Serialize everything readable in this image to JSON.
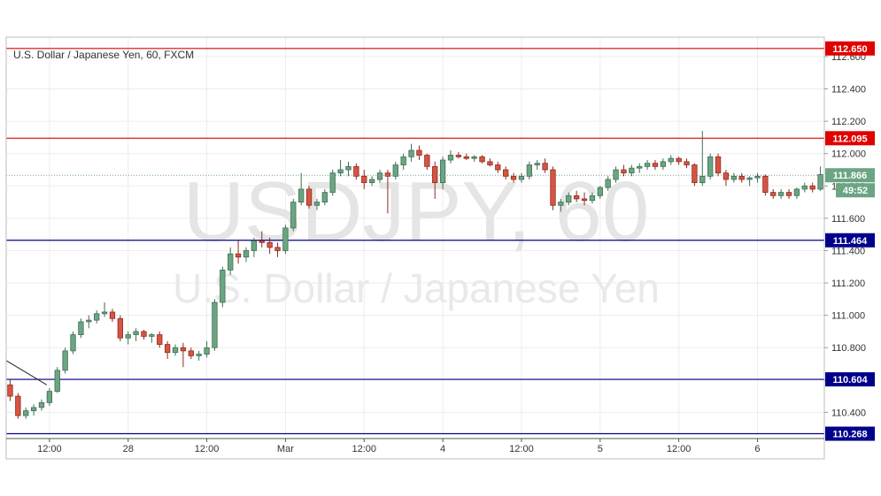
{
  "chart_data": {
    "type": "candlestick",
    "title": "U.S. Dollar / Japanese Yen, 60, FXCM",
    "watermark": {
      "symbol": "USDJPY, 60",
      "name": "U.S. Dollar / Japanese Yen"
    },
    "ylim": [
      110.26,
      112.72
    ],
    "y_ticks": [
      "110.400",
      "110.600",
      "110.800",
      "111.000",
      "111.200",
      "111.400",
      "111.600",
      "111.800",
      "112.000",
      "112.200",
      "112.400",
      "112.600"
    ],
    "y_tick_values": [
      110.4,
      110.6,
      110.8,
      111.0,
      111.2,
      111.4,
      111.6,
      111.8,
      112.0,
      112.2,
      112.4,
      112.6
    ],
    "x_ticks": [
      {
        "label": "12:00",
        "bar": 5
      },
      {
        "label": "28",
        "bar": 15
      },
      {
        "label": "12:00",
        "bar": 25
      },
      {
        "label": "Mar",
        "bar": 35
      },
      {
        "label": "12:00",
        "bar": 45
      },
      {
        "label": "4",
        "bar": 55
      },
      {
        "label": "12:00",
        "bar": 65
      },
      {
        "label": "5",
        "bar": 75
      },
      {
        "label": "12:00",
        "bar": 85
      },
      {
        "label": "6",
        "bar": 95
      }
    ],
    "bar_count": 104,
    "grid": true,
    "up_color": "#6ba583",
    "down_color": "#d75442",
    "support_resistance": [
      {
        "price": 112.65,
        "label": "112.650",
        "color": "#e00000"
      },
      {
        "price": 112.095,
        "label": "112.095",
        "color": "#e00000"
      },
      {
        "price": 111.464,
        "label": "111.464",
        "color": "#00008b"
      },
      {
        "price": 110.604,
        "label": "110.604",
        "color": "#00008b"
      },
      {
        "price": 110.268,
        "label": "110.268",
        "color": "#00008b"
      }
    ],
    "current_price": {
      "price": 111.866,
      "label": "111.866",
      "countdown": "49:52",
      "color": "#6ba583"
    },
    "trendline": {
      "from": [
        0,
        110.72
      ],
      "to": [
        5,
        110.57
      ],
      "color": "#222222"
    },
    "candles": [
      [
        110.57,
        110.6,
        110.47,
        110.5
      ],
      [
        110.5,
        110.52,
        110.36,
        110.38
      ],
      [
        110.38,
        110.43,
        110.36,
        110.41
      ],
      [
        110.41,
        110.45,
        110.38,
        110.43
      ],
      [
        110.43,
        110.48,
        110.41,
        110.46
      ],
      [
        110.46,
        110.55,
        110.44,
        110.53
      ],
      [
        110.53,
        110.68,
        110.52,
        110.66
      ],
      [
        110.66,
        110.8,
        110.64,
        110.78
      ],
      [
        110.78,
        110.9,
        110.76,
        110.88
      ],
      [
        110.88,
        110.98,
        110.86,
        110.96
      ],
      [
        110.96,
        111.0,
        110.92,
        110.97
      ],
      [
        110.97,
        111.03,
        110.95,
        111.01
      ],
      [
        111.01,
        111.08,
        110.99,
        111.02
      ],
      [
        111.02,
        111.04,
        110.96,
        110.98
      ],
      [
        110.98,
        111.0,
        110.84,
        110.86
      ],
      [
        110.86,
        110.9,
        110.82,
        110.88
      ],
      [
        110.88,
        110.92,
        110.84,
        110.9
      ],
      [
        110.9,
        110.91,
        110.85,
        110.87
      ],
      [
        110.87,
        110.89,
        110.83,
        110.88
      ],
      [
        110.88,
        110.9,
        110.8,
        110.82
      ],
      [
        110.82,
        110.84,
        110.73,
        110.77
      ],
      [
        110.77,
        110.82,
        110.75,
        110.8
      ],
      [
        110.8,
        110.83,
        110.68,
        110.78
      ],
      [
        110.78,
        110.8,
        110.73,
        110.75
      ],
      [
        110.75,
        110.78,
        110.72,
        110.76
      ],
      [
        110.76,
        110.84,
        110.74,
        110.8
      ],
      [
        110.8,
        111.1,
        110.78,
        111.08
      ],
      [
        111.08,
        111.3,
        111.05,
        111.28
      ],
      [
        111.28,
        111.42,
        111.25,
        111.38
      ],
      [
        111.38,
        111.46,
        111.32,
        111.36
      ],
      [
        111.36,
        111.42,
        111.33,
        111.4
      ],
      [
        111.4,
        111.48,
        111.36,
        111.46
      ],
      [
        111.46,
        111.52,
        111.42,
        111.45
      ],
      [
        111.45,
        111.48,
        111.38,
        111.42
      ],
      [
        111.42,
        111.45,
        111.36,
        111.4
      ],
      [
        111.4,
        111.56,
        111.38,
        111.54
      ],
      [
        111.54,
        111.72,
        111.52,
        111.7
      ],
      [
        111.7,
        111.88,
        111.68,
        111.78
      ],
      [
        111.78,
        111.8,
        111.66,
        111.68
      ],
      [
        111.68,
        111.72,
        111.65,
        111.7
      ],
      [
        111.7,
        111.78,
        111.68,
        111.76
      ],
      [
        111.76,
        111.9,
        111.74,
        111.88
      ],
      [
        111.88,
        111.96,
        111.86,
        111.9
      ],
      [
        111.9,
        111.95,
        111.86,
        111.92
      ],
      [
        111.92,
        111.94,
        111.84,
        111.86
      ],
      [
        111.86,
        111.9,
        111.78,
        111.82
      ],
      [
        111.82,
        111.86,
        111.8,
        111.84
      ],
      [
        111.84,
        111.9,
        111.82,
        111.88
      ],
      [
        111.88,
        111.9,
        111.63,
        111.86
      ],
      [
        111.86,
        111.95,
        111.84,
        111.93
      ],
      [
        111.93,
        112.0,
        111.9,
        111.98
      ],
      [
        111.98,
        112.06,
        111.95,
        112.02
      ],
      [
        112.02,
        112.05,
        111.96,
        111.99
      ],
      [
        111.99,
        112.0,
        111.9,
        111.92
      ],
      [
        111.92,
        111.95,
        111.72,
        111.82
      ],
      [
        111.82,
        111.98,
        111.78,
        111.96
      ],
      [
        111.96,
        112.02,
        111.94,
        111.99
      ],
      [
        111.99,
        112.01,
        111.97,
        111.98
      ],
      [
        111.98,
        112.0,
        111.96,
        111.97
      ],
      [
        111.97,
        111.99,
        111.95,
        111.98
      ],
      [
        111.98,
        111.99,
        111.94,
        111.95
      ],
      [
        111.95,
        111.97,
        111.92,
        111.93
      ],
      [
        111.93,
        111.95,
        111.88,
        111.9
      ],
      [
        111.9,
        111.92,
        111.84,
        111.86
      ],
      [
        111.86,
        111.88,
        111.82,
        111.84
      ],
      [
        111.84,
        111.88,
        111.82,
        111.86
      ],
      [
        111.86,
        111.95,
        111.84,
        111.93
      ],
      [
        111.93,
        111.96,
        111.9,
        111.94
      ],
      [
        111.94,
        111.97,
        111.88,
        111.9
      ],
      [
        111.9,
        111.92,
        111.65,
        111.68
      ],
      [
        111.68,
        111.72,
        111.64,
        111.7
      ],
      [
        111.7,
        111.76,
        111.68,
        111.74
      ],
      [
        111.74,
        111.77,
        111.7,
        111.72
      ],
      [
        111.72,
        111.76,
        111.68,
        111.71
      ],
      [
        111.71,
        111.76,
        111.69,
        111.74
      ],
      [
        111.74,
        111.8,
        111.72,
        111.79
      ],
      [
        111.79,
        111.86,
        111.77,
        111.84
      ],
      [
        111.84,
        111.92,
        111.82,
        111.9
      ],
      [
        111.9,
        111.93,
        111.86,
        111.88
      ],
      [
        111.88,
        111.93,
        111.86,
        111.91
      ],
      [
        111.91,
        111.94,
        111.88,
        111.92
      ],
      [
        111.92,
        111.96,
        111.9,
        111.94
      ],
      [
        111.94,
        111.96,
        111.9,
        111.92
      ],
      [
        111.92,
        111.97,
        111.9,
        111.95
      ],
      [
        111.95,
        111.99,
        111.93,
        111.97
      ],
      [
        111.97,
        111.98,
        111.93,
        111.95
      ],
      [
        111.95,
        111.97,
        111.91,
        111.93
      ],
      [
        111.93,
        111.94,
        111.8,
        111.82
      ],
      [
        111.82,
        112.14,
        111.8,
        111.86
      ],
      [
        111.86,
        112.0,
        111.84,
        111.98
      ],
      [
        111.98,
        112.0,
        111.86,
        111.88
      ],
      [
        111.88,
        111.9,
        111.8,
        111.84
      ],
      [
        111.84,
        111.88,
        111.82,
        111.86
      ],
      [
        111.86,
        111.88,
        111.82,
        111.84
      ],
      [
        111.84,
        111.86,
        111.8,
        111.85
      ],
      [
        111.85,
        111.88,
        111.82,
        111.86
      ],
      [
        111.86,
        111.87,
        111.74,
        111.76
      ],
      [
        111.76,
        111.78,
        111.72,
        111.74
      ],
      [
        111.74,
        111.78,
        111.72,
        111.76
      ],
      [
        111.76,
        111.78,
        111.72,
        111.74
      ],
      [
        111.74,
        111.79,
        111.72,
        111.78
      ],
      [
        111.78,
        111.82,
        111.76,
        111.8
      ],
      [
        111.8,
        111.82,
        111.76,
        111.78
      ],
      [
        111.78,
        111.92,
        111.77,
        111.87
      ]
    ]
  }
}
